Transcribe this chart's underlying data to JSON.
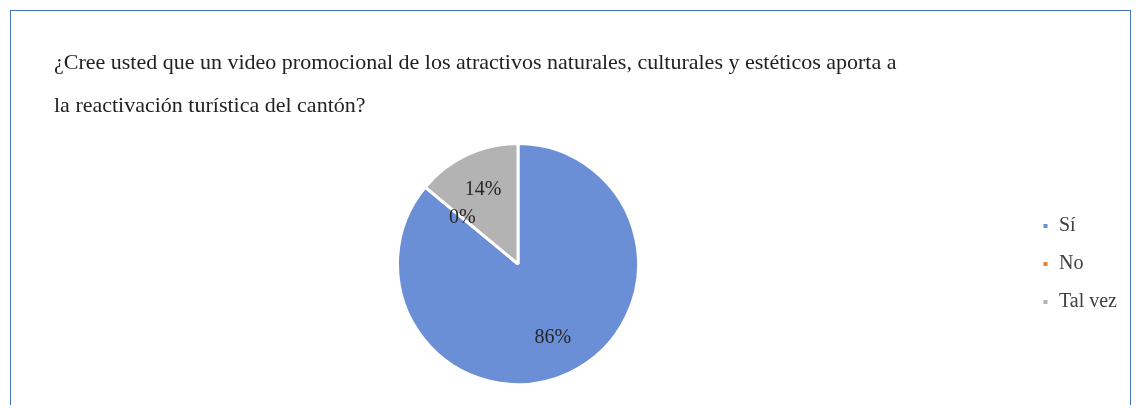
{
  "chart_data": {
    "type": "pie",
    "title": "¿Cree usted que un video promocional de los atractivos naturales, culturales y estéticos aporta a la reactivación turística del cantón?",
    "categories": [
      "Sí",
      "No",
      "Tal vez"
    ],
    "values": [
      86,
      0,
      14
    ],
    "colors": [
      "#6a8fd6",
      "#ed7d31",
      "#b3b3b3"
    ],
    "value_labels": [
      "86%",
      "0%",
      "14%"
    ],
    "legend": "right"
  }
}
